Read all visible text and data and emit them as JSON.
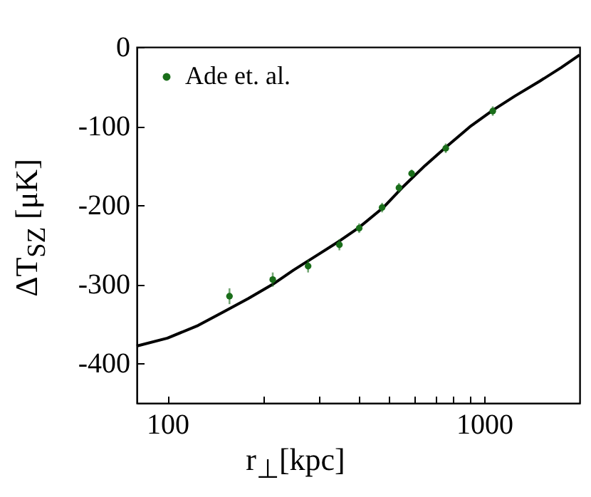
{
  "chart_data": {
    "type": "scatter",
    "xlabel": "r$_{⊥}$[kpc]",
    "ylabel": "ΔT$_{SZ}$ [μK]",
    "log": "x",
    "xlim": [
      80,
      2000
    ],
    "ylim": [
      -450,
      0
    ],
    "xticks": [
      100,
      {
        "value": 200,
        "label": null
      },
      {
        "value": 300,
        "label": null
      },
      {
        "value": 400,
        "label": null
      },
      {
        "value": 500,
        "label": null
      },
      {
        "value": 600,
        "label": null
      },
      {
        "value": 700,
        "label": null
      },
      {
        "value": 800,
        "label": null
      },
      {
        "value": 900,
        "label": null
      },
      1000
    ],
    "yticks": [
      -400,
      -300,
      -200,
      -100,
      0
    ],
    "grid": false,
    "legend": "top left",
    "marker": "circle",
    "series": [
      {
        "name": "Ade et. al.",
        "color": "#1a6e1a",
        "x": [
          157,
          215,
          278,
          349,
          403,
          476,
          538,
          590,
          756,
          1064
        ],
        "values": [
          -315,
          -294,
          -277,
          -250,
          -229,
          -203,
          -178,
          -160,
          -128,
          -81
        ],
        "errors": [
          10,
          9,
          8,
          7,
          6,
          6,
          6,
          5,
          6,
          6
        ]
      },
      {
        "color": "#000000",
        "type": "line",
        "marker": "none",
        "x": [
          80,
          100,
          125,
          150,
          180,
          215,
          250,
          300,
          350,
          400,
          480,
          550,
          650,
          760,
          900,
          1064,
          1250,
          1500,
          1750,
          2000
        ],
        "values": [
          -378,
          -368,
          -352,
          -335,
          -318,
          -300,
          -282,
          -262,
          -245,
          -229,
          -203,
          -178,
          -150,
          -126,
          -101,
          -80,
          -62,
          -43,
          -26,
          -10
        ]
      }
    ]
  }
}
